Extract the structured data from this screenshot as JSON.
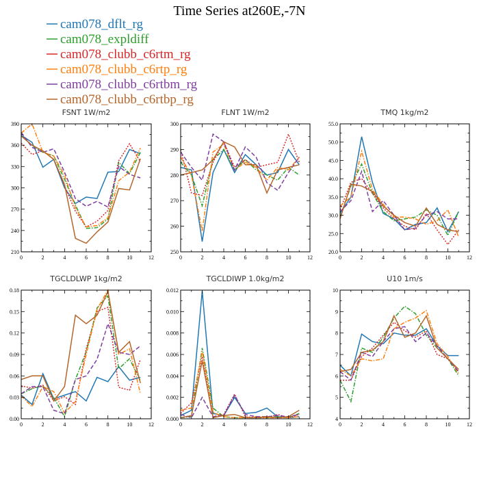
{
  "title": "Time Series at260E,-7N",
  "legend": [
    {
      "name": "cam078_dflt_rg",
      "color": "#1f77b4",
      "dash": "solid"
    },
    {
      "name": "cam078_expldiff",
      "color": "#2ca02c",
      "dash": "dashdot"
    },
    {
      "name": "cam078_clubb_c6rtm_rg",
      "color": "#d62728",
      "dash": "dotted"
    },
    {
      "name": "cam078_clubb_c6rtp_rg",
      "color": "#ff7f0e",
      "dash": "dashdot"
    },
    {
      "name": "cam078_clubb_c6rtbm_rg",
      "color": "#7e3ea0",
      "dash": "dashed"
    },
    {
      "name": "cam078_clubb_c6rtbp_rg",
      "color": "#b5652a",
      "dash": "solid"
    }
  ],
  "chart_data": [
    {
      "type": "line",
      "title": "FSNT   1W/m2",
      "xlim": [
        0,
        12
      ],
      "ylim": [
        210,
        390
      ],
      "xticks": [
        0,
        2,
        4,
        6,
        8,
        10,
        12
      ],
      "yticks": [
        210,
        240,
        270,
        300,
        330,
        360,
        390
      ],
      "x": [
        0,
        1,
        2,
        3,
        4,
        5,
        6,
        7,
        8,
        9,
        10,
        11
      ],
      "series": [
        {
          "name": "cam078_dflt_rg",
          "values": [
            374,
            364,
            329,
            340,
            300,
            278,
            287,
            285,
            322,
            323,
            354,
            348
          ]
        },
        {
          "name": "cam078_expldiff",
          "values": [
            373,
            360,
            350,
            345,
            312,
            276,
            243,
            244,
            256,
            336,
            320,
            350
          ]
        },
        {
          "name": "cam078_clubb_c6rtm_rg",
          "values": [
            363,
            347,
            352,
            340,
            303,
            267,
            245,
            253,
            268,
            338,
            362,
            337
          ]
        },
        {
          "name": "cam078_clubb_c6rtp_rg",
          "values": [
            377,
            390,
            350,
            345,
            318,
            272,
            245,
            247,
            258,
            310,
            322,
            356
          ]
        },
        {
          "name": "cam078_clubb_c6rtbm_rg",
          "values": [
            378,
            357,
            350,
            355,
            322,
            285,
            274,
            281,
            273,
            330,
            319,
            314
          ]
        },
        {
          "name": "cam078_clubb_c6rtbp_rg",
          "values": [
            373,
            360,
            352,
            340,
            305,
            229,
            222,
            238,
            252,
            299,
            297,
            341
          ]
        }
      ]
    },
    {
      "type": "line",
      "title": "FLNT   1W/m2",
      "xlim": [
        0,
        12
      ],
      "ylim": [
        250,
        300
      ],
      "xticks": [
        0,
        2,
        4,
        6,
        8,
        10,
        12
      ],
      "yticks": [
        250,
        260,
        270,
        280,
        290,
        300
      ],
      "x": [
        0,
        1,
        2,
        3,
        4,
        5,
        6,
        7,
        8,
        9,
        10,
        11
      ],
      "series": [
        {
          "name": "cam078_dflt_rg",
          "values": [
            283,
            282,
            254,
            281,
            290,
            281,
            288,
            284,
            280,
            281,
            290,
            284
          ]
        },
        {
          "name": "cam078_expldiff",
          "values": [
            285,
            280,
            268,
            286,
            290,
            282,
            286,
            282,
            280,
            278,
            283,
            280
          ]
        },
        {
          "name": "cam078_clubb_c6rtm_rg",
          "values": [
            290,
            273,
            272,
            285,
            293,
            283,
            286,
            283,
            284,
            285,
            296,
            285
          ]
        },
        {
          "name": "cam078_clubb_c6rtp_rg",
          "values": [
            287,
            280,
            258,
            289,
            292,
            282,
            285,
            283,
            278,
            283,
            282,
            287
          ]
        },
        {
          "name": "cam078_clubb_c6rtbm_rg",
          "values": [
            289,
            283,
            278,
            296,
            293,
            282,
            291,
            287,
            277,
            274,
            281,
            287
          ]
        },
        {
          "name": "cam078_clubb_c6rtbp_rg",
          "values": [
            280,
            281,
            282,
            286,
            293,
            291,
            284,
            284,
            273,
            282,
            283,
            284
          ]
        }
      ]
    },
    {
      "type": "line",
      "title": "TMQ   1kg/m2",
      "xlim": [
        0,
        12
      ],
      "ylim": [
        20,
        55
      ],
      "xticks": [
        0,
        2,
        4,
        6,
        8,
        10,
        12
      ],
      "yticks": [
        20.0,
        25.0,
        30.0,
        35.0,
        40.0,
        45.0,
        50.0,
        55.0
      ],
      "x": [
        0,
        1,
        2,
        3,
        4,
        5,
        6,
        7,
        8,
        9,
        10,
        11
      ],
      "series": [
        {
          "name": "cam078_dflt_rg",
          "values": [
            30.5,
            35,
            51.5,
            39,
            30.5,
            29,
            26,
            27.5,
            28,
            32,
            25.5,
            31
          ]
        },
        {
          "name": "cam078_expldiff",
          "values": [
            29.5,
            38,
            44,
            36,
            31,
            28.5,
            29,
            29.5,
            31.5,
            30,
            24.5,
            31
          ]
        },
        {
          "name": "cam078_clubb_c6rtm_rg",
          "values": [
            31.5,
            39,
            40,
            36,
            32,
            29,
            27,
            26,
            30.5,
            26,
            22,
            26
          ]
        },
        {
          "name": "cam078_clubb_c6rtp_rg",
          "values": [
            32.5,
            35,
            47.5,
            37,
            33,
            29.5,
            29.5,
            29,
            27.5,
            28.5,
            31.5,
            24
          ]
        },
        {
          "name": "cam078_clubb_c6rtbm_rg",
          "values": [
            31,
            34,
            42,
            31,
            34,
            30,
            26,
            26.5,
            30,
            31,
            29,
            29
          ]
        },
        {
          "name": "cam078_clubb_c6rtbp_rg",
          "values": [
            29,
            38.5,
            38,
            36.5,
            32.5,
            30,
            28,
            27,
            32,
            27.5,
            26,
            25.5
          ]
        }
      ]
    },
    {
      "type": "line",
      "title": "TGCLDLWP   1kg/m2",
      "xlim": [
        0,
        12
      ],
      "ylim": [
        0,
        0.18
      ],
      "xticks": [
        0,
        2,
        4,
        6,
        8,
        10,
        12
      ],
      "yticks": [
        0.0,
        0.03,
        0.06,
        0.09,
        0.12,
        0.15,
        0.18
      ],
      "x": [
        0,
        1,
        2,
        3,
        4,
        5,
        6,
        7,
        8,
        9,
        10,
        11
      ],
      "series": [
        {
          "name": "cam078_dflt_rg",
          "values": [
            0.033,
            0.02,
            0.063,
            0.028,
            0.033,
            0.038,
            0.025,
            0.058,
            0.052,
            0.073,
            0.054,
            0.058
          ]
        },
        {
          "name": "cam078_expldiff",
          "values": [
            0.035,
            0.042,
            0.046,
            0.03,
            0.003,
            0.055,
            0.094,
            0.155,
            0.172,
            0.07,
            0.084,
            0.053
          ]
        },
        {
          "name": "cam078_clubb_c6rtm_rg",
          "values": [
            0.046,
            0.043,
            0.047,
            0.025,
            0.031,
            0.02,
            0.098,
            0.15,
            0.156,
            0.044,
            0.04,
            0.083
          ]
        },
        {
          "name": "cam078_clubb_c6rtp_rg",
          "values": [
            0.032,
            0.017,
            0.045,
            0.038,
            0.008,
            0.024,
            0.09,
            0.153,
            0.18,
            0.09,
            0.098,
            0.035
          ]
        },
        {
          "name": "cam078_clubb_c6rtbm_rg",
          "values": [
            0.035,
            0.045,
            0.045,
            0.012,
            0.007,
            0.055,
            0.06,
            0.083,
            0.133,
            0.093,
            0.09,
            0.102
          ]
        },
        {
          "name": "cam078_clubb_c6rtbp_rg",
          "values": [
            0.055,
            0.06,
            0.06,
            0.025,
            0.045,
            0.145,
            0.133,
            0.145,
            0.178,
            0.093,
            0.108,
            0.05
          ]
        }
      ]
    },
    {
      "type": "line",
      "title": "TGCLDIWP   1.0kg/m2",
      "xlim": [
        0,
        12
      ],
      "ylim": [
        0,
        0.012
      ],
      "xticks": [
        0,
        2,
        4,
        6,
        8,
        10,
        12
      ],
      "yticks": [
        0.0,
        0.002,
        0.004,
        0.006,
        0.008,
        0.01,
        0.012
      ],
      "x": [
        0,
        1,
        2,
        3,
        4,
        5,
        6,
        7,
        8,
        9,
        10,
        11
      ],
      "series": [
        {
          "name": "cam078_dflt_rg",
          "values": [
            0.0003,
            0.0008,
            0.0119,
            0.0005,
            0.0003,
            0.002,
            0.0005,
            0.0006,
            0.001,
            0.0002,
            0.0001,
            0.0002
          ]
        },
        {
          "name": "cam078_expldiff",
          "values": [
            0.0001,
            0.0002,
            0.0066,
            0.001,
            0.0002,
            0.0001,
            0.0001,
            0.0001,
            0.0001,
            0.0002,
            0.0001,
            0.0005
          ]
        },
        {
          "name": "cam078_clubb_c6rtm_rg",
          "values": [
            0.0005,
            0.0015,
            0.0058,
            0.0002,
            0.0004,
            0.0023,
            0.0002,
            0.0001,
            0.0001,
            0.0004,
            0.0001,
            0.0004
          ]
        },
        {
          "name": "cam078_clubb_c6rtp_rg",
          "values": [
            0.0008,
            0.001,
            0.0063,
            0.0006,
            0.0002,
            0.0001,
            0.0001,
            0.0002,
            0.0001,
            0.0001,
            0.0001,
            0.0002
          ]
        },
        {
          "name": "cam078_clubb_c6rtbm_rg",
          "values": [
            0.0004,
            0.0001,
            0.002,
            0.0002,
            0.0003,
            0.0022,
            0.0004,
            0.0002,
            0.0002,
            0.0003,
            0.0002,
            0.0004
          ]
        },
        {
          "name": "cam078_clubb_c6rtbp_rg",
          "values": [
            0.0001,
            0.0003,
            0.0054,
            0.0001,
            0.0003,
            0.0004,
            0.0001,
            0.0001,
            0.0002,
            0.0001,
            0.0002,
            0.0008
          ]
        }
      ]
    },
    {
      "type": "line",
      "title": "U10   1m/s",
      "xlim": [
        0,
        12
      ],
      "ylim": [
        4,
        10
      ],
      "xticks": [
        0,
        2,
        4,
        6,
        8,
        10,
        12
      ],
      "yticks": [
        4,
        5,
        6,
        7,
        8,
        9,
        10
      ],
      "x": [
        0,
        1,
        2,
        3,
        4,
        5,
        6,
        7,
        8,
        9,
        10,
        11
      ],
      "series": [
        {
          "name": "cam078_dflt_rg",
          "values": [
            6.5,
            6.0,
            7.95,
            7.6,
            7.5,
            8.0,
            7.9,
            7.9,
            8.2,
            7.4,
            6.95,
            6.95
          ]
        },
        {
          "name": "cam078_expldiff",
          "values": [
            5.8,
            4.8,
            7.3,
            7.1,
            7.8,
            8.7,
            9.25,
            8.9,
            7.9,
            7.3,
            6.8,
            6.0
          ]
        },
        {
          "name": "cam078_clubb_c6rtm_rg",
          "values": [
            5.8,
            5.8,
            6.9,
            7.3,
            7.9,
            8.5,
            8.1,
            7.8,
            8.1,
            7.0,
            6.8,
            6.2
          ]
        },
        {
          "name": "cam078_clubb_c6rtp_rg",
          "values": [
            6.3,
            6.0,
            6.8,
            6.7,
            6.8,
            8.2,
            8.5,
            8.7,
            9.05,
            7.5,
            6.9,
            6.1
          ]
        },
        {
          "name": "cam078_clubb_c6rtbm_rg",
          "values": [
            6.2,
            5.8,
            7.1,
            6.9,
            7.6,
            8.2,
            8.3,
            7.6,
            8.0,
            7.4,
            6.8,
            6.2
          ]
        },
        {
          "name": "cam078_clubb_c6rtbp_rg",
          "values": [
            6.2,
            6.3,
            7.1,
            7.2,
            7.6,
            8.8,
            7.8,
            8.0,
            8.8,
            7.3,
            6.8,
            6.3
          ]
        }
      ]
    }
  ]
}
